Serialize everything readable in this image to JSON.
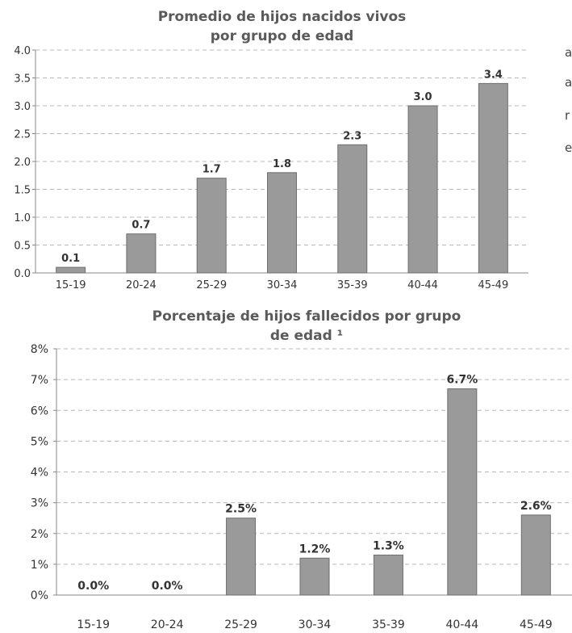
{
  "charts": [
    {
      "id": "chart1",
      "title_lines": [
        "Promedio de hijos nacidos vivos",
        "por grupo de edad"
      ],
      "chart_data": {
        "type": "bar",
        "title": "Promedio de hijos nacidos vivos por grupo de edad",
        "categories": [
          "15-19",
          "20-24",
          "25-29",
          "30-34",
          "35-39",
          "40-44",
          "45-49"
        ],
        "values": [
          0.1,
          0.7,
          1.7,
          1.8,
          2.3,
          3.0,
          3.4
        ],
        "data_labels": [
          "0.1",
          "0.7",
          "1.7",
          "1.8",
          "2.3",
          "3.0",
          "3.4"
        ],
        "y_ticks": [
          "0.0",
          "0.5",
          "1.0",
          "1.5",
          "2.0",
          "2.5",
          "3.0",
          "3.5",
          "4.0"
        ],
        "ylim": [
          0,
          4
        ],
        "grid": true,
        "xlabel": "",
        "ylabel": ""
      }
    },
    {
      "id": "chart2",
      "title_lines": [
        "Porcentaje de hijos fallecidos por grupo",
        "de edad ¹"
      ],
      "chart_data": {
        "type": "bar",
        "title": "Porcentaje de hijos fallecidos por grupo de edad ¹",
        "categories": [
          "15-19",
          "20-24",
          "25-29",
          "30-34",
          "35-39",
          "40-44",
          "45-49"
        ],
        "values": [
          0.0,
          0.0,
          2.5,
          1.2,
          1.3,
          6.7,
          2.6
        ],
        "data_labels": [
          "0.0%",
          "0.0%",
          "2.5%",
          "1.2%",
          "1.3%",
          "6.7%",
          "2.6%"
        ],
        "y_ticks": [
          "0%",
          "1%",
          "2%",
          "3%",
          "4%",
          "5%",
          "6%",
          "7%",
          "8%"
        ],
        "ylim": [
          0,
          8
        ],
        "grid": true,
        "xlabel": "",
        "ylabel": ""
      }
    }
  ],
  "colors": {
    "bar": "#9a9a9a",
    "bar_edge": "#6e6e6e",
    "title": "#5a5a5a",
    "text": "#333333",
    "grid": "#b8b8b8",
    "axis": "#888888"
  },
  "side_text": [
    "a",
    "a",
    "r",
    "e"
  ]
}
